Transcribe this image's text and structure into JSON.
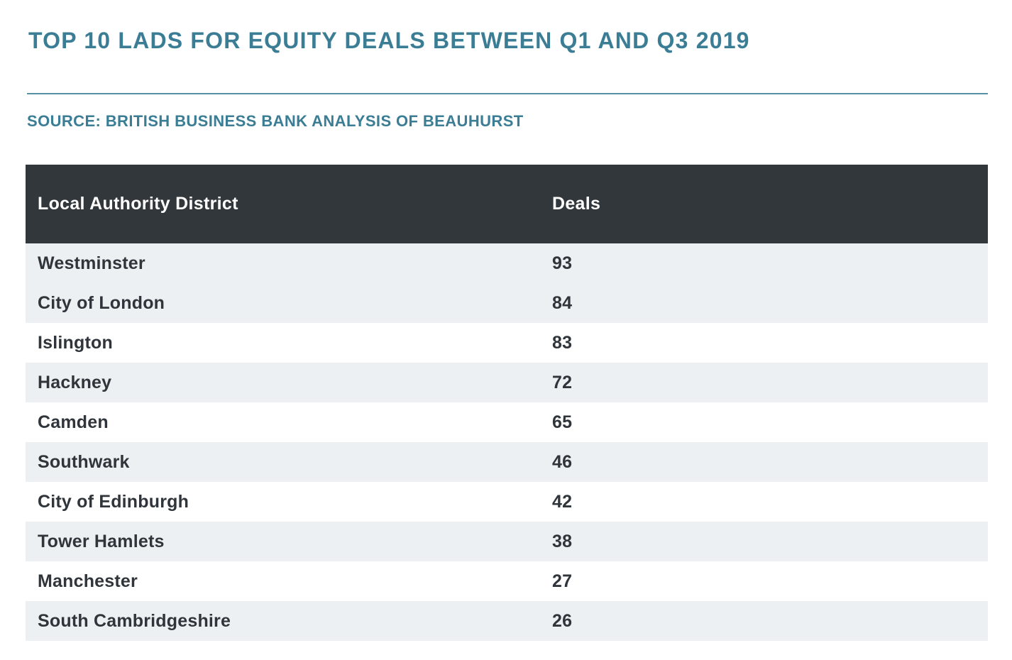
{
  "page": {
    "title": "TOP 10 LADS FOR EQUITY DEALS BETWEEN Q1 AND Q3 2019",
    "source": "SOURCE: BRITISH BUSINESS BANK ANALYSIS OF BEAUHURST"
  },
  "colors": {
    "accent_teal": "#3A7D94",
    "header_bg": "#31373B",
    "header_text": "#FFFFFF",
    "row_text": "#2F353A",
    "row_stripe": "#EDF0F2",
    "background": "#FFFFFF"
  },
  "table": {
    "columns": [
      "Local Authority District",
      "Deals"
    ],
    "rows": [
      {
        "district": "Westminster",
        "deals": "93"
      },
      {
        "district": "City of London",
        "deals": "84"
      },
      {
        "district": "Islington",
        "deals": "83"
      },
      {
        "district": "Hackney",
        "deals": "72"
      },
      {
        "district": "Camden",
        "deals": "65"
      },
      {
        "district": "Southwark",
        "deals": "46"
      },
      {
        "district": "City of Edinburgh",
        "deals": "42"
      },
      {
        "district": "Tower Hamlets",
        "deals": "38"
      },
      {
        "district": "Manchester",
        "deals": "27"
      },
      {
        "district": "South Cambridgeshire",
        "deals": "26"
      }
    ]
  },
  "chart_data": {
    "type": "table",
    "title": "TOP 10 LADS FOR EQUITY DEALS BETWEEN Q1 AND Q3 2019",
    "source": "SOURCE: BRITISH BUSINESS BANK ANALYSIS OF BEAUHURST",
    "columns": [
      "Local Authority District",
      "Deals"
    ],
    "categories": [
      "Westminster",
      "City of London",
      "Islington",
      "Hackney",
      "Camden",
      "Southwark",
      "City of Edinburgh",
      "Tower Hamlets",
      "Manchester",
      "South Cambridgeshire"
    ],
    "values": [
      93,
      84,
      83,
      72,
      65,
      46,
      42,
      38,
      27,
      26
    ],
    "layout_hints": {
      "header_style": "dark-charcoal-bar",
      "shaded_row_indices_1based": [
        1,
        2,
        4,
        6,
        8,
        10
      ],
      "value_column_alignment": "left"
    }
  }
}
